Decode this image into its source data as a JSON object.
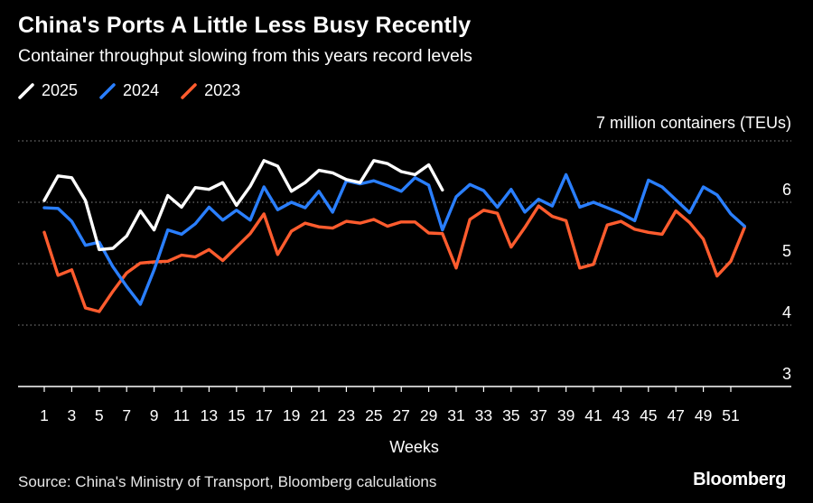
{
  "header": {
    "title": "China's Ports A Little Less Busy Recently",
    "subtitle": "Container throughput slowing from this years record levels"
  },
  "footer": {
    "source": "Source: China's Ministry of Transport, Bloomberg calculations",
    "brand": "Bloomberg"
  },
  "chart_data": {
    "type": "line",
    "xlabel": "Weeks",
    "ylabel": "7 million containers (TEUs)",
    "ylim": [
      3,
      7
    ],
    "yticks": [
      3,
      4,
      5,
      6
    ],
    "xlim": [
      0.5,
      54
    ],
    "xticks": [
      1,
      3,
      5,
      7,
      9,
      11,
      13,
      15,
      17,
      19,
      21,
      23,
      25,
      27,
      29,
      31,
      33,
      35,
      37,
      39,
      41,
      43,
      45,
      47,
      49,
      51
    ],
    "grid": true,
    "legend": "top-left",
    "series": [
      {
        "name": "2025",
        "color": "#ffffff",
        "x": [
          1,
          2,
          3,
          4,
          5,
          6,
          7,
          8,
          9,
          10,
          11,
          12,
          13,
          14,
          15,
          16,
          17,
          18,
          19,
          20,
          21,
          22,
          23,
          24,
          25,
          26,
          27,
          28,
          29,
          30
        ],
        "values": [
          6.03,
          6.43,
          6.4,
          6.03,
          5.23,
          5.25,
          5.45,
          5.86,
          5.55,
          6.11,
          5.92,
          6.24,
          6.21,
          6.32,
          5.95,
          6.26,
          6.68,
          6.59,
          6.18,
          6.32,
          6.52,
          6.48,
          6.37,
          6.32,
          6.68,
          6.63,
          6.5,
          6.45,
          6.61,
          6.2
        ]
      },
      {
        "name": "2024",
        "color": "#2a7fff",
        "x": [
          1,
          2,
          3,
          4,
          5,
          6,
          7,
          8,
          9,
          10,
          11,
          12,
          13,
          14,
          15,
          16,
          17,
          18,
          19,
          20,
          21,
          22,
          23,
          24,
          25,
          26,
          27,
          28,
          29,
          30,
          31,
          32,
          33,
          34,
          35,
          36,
          37,
          38,
          39,
          40,
          41,
          42,
          43,
          44,
          45,
          46,
          47,
          48,
          49,
          50,
          51,
          52
        ],
        "values": [
          5.91,
          5.9,
          5.69,
          5.3,
          5.35,
          4.95,
          4.63,
          4.34,
          4.9,
          5.55,
          5.48,
          5.65,
          5.92,
          5.71,
          5.87,
          5.71,
          6.25,
          5.88,
          6.0,
          5.91,
          6.18,
          5.84,
          6.35,
          6.3,
          6.35,
          6.27,
          6.18,
          6.4,
          6.28,
          5.55,
          6.09,
          6.29,
          6.19,
          5.92,
          6.21,
          5.84,
          6.05,
          5.94,
          6.45,
          5.92,
          6.0,
          5.91,
          5.82,
          5.7,
          6.36,
          6.25,
          6.04,
          5.83,
          6.25,
          6.12,
          5.81,
          5.61
        ]
      },
      {
        "name": "2023",
        "color": "#ff5c2e",
        "x": [
          1,
          2,
          3,
          4,
          5,
          6,
          7,
          8,
          9,
          10,
          11,
          12,
          13,
          14,
          15,
          16,
          17,
          18,
          19,
          20,
          21,
          22,
          23,
          24,
          25,
          26,
          27,
          28,
          29,
          30,
          31,
          32,
          33,
          34,
          35,
          36,
          37,
          38,
          39,
          40,
          41,
          42,
          43,
          44,
          45,
          46,
          47,
          48,
          49,
          50,
          51,
          52
        ],
        "values": [
          5.51,
          4.81,
          4.9,
          4.28,
          4.22,
          4.55,
          4.85,
          5.01,
          5.03,
          5.04,
          5.14,
          5.11,
          5.23,
          5.05,
          5.27,
          5.49,
          5.81,
          5.15,
          5.53,
          5.66,
          5.6,
          5.58,
          5.69,
          5.66,
          5.72,
          5.61,
          5.68,
          5.68,
          5.5,
          5.49,
          4.93,
          5.72,
          5.87,
          5.82,
          5.27,
          5.59,
          5.94,
          5.77,
          5.7,
          4.93,
          4.99,
          5.63,
          5.69,
          5.56,
          5.51,
          5.48,
          5.86,
          5.67,
          5.4,
          4.8,
          5.04,
          5.59
        ]
      }
    ]
  }
}
